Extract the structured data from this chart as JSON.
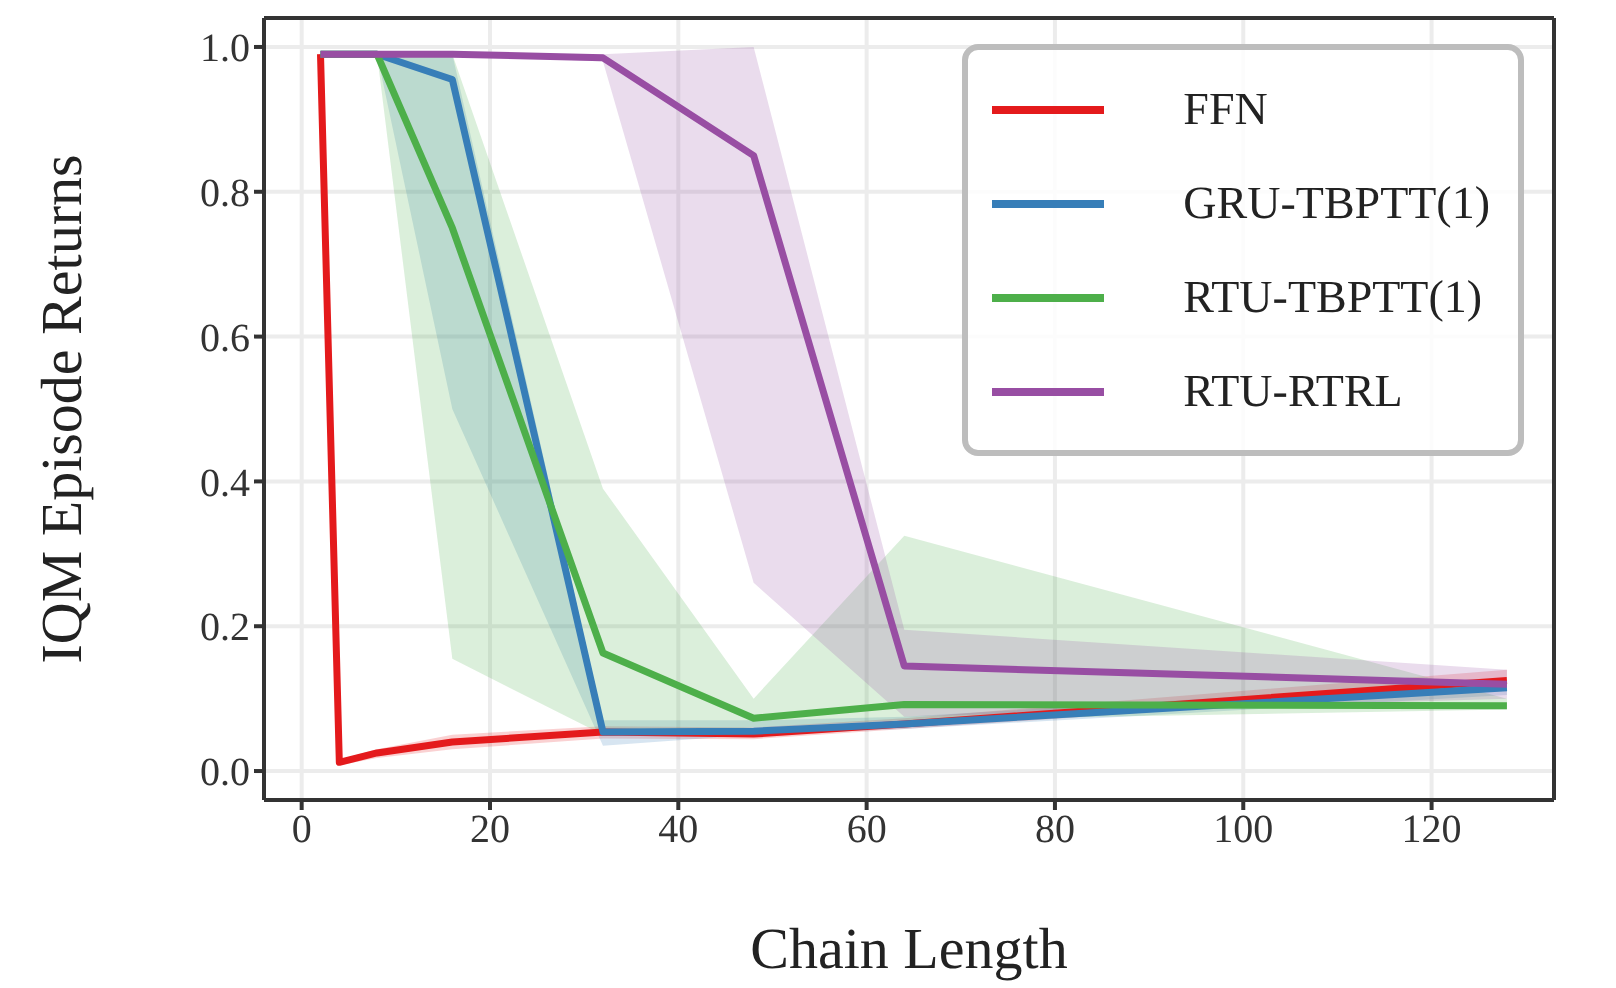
{
  "chart_data": {
    "type": "line",
    "xlabel": "Chain Length",
    "ylabel": "IQM Episode Returns",
    "x": [
      2,
      4,
      8,
      16,
      32,
      48,
      64,
      128
    ],
    "xlim": [
      -4,
      133
    ],
    "xticks": [
      0,
      20,
      40,
      60,
      80,
      100,
      120
    ],
    "ylim": [
      -0.04,
      1.04
    ],
    "yticks": [
      {
        "value": 0,
        "label": "0.0"
      },
      {
        "value": 0.2,
        "label": "0.2"
      },
      {
        "value": 0.4,
        "label": "0.4"
      },
      {
        "value": 0.6,
        "label": "0.6"
      },
      {
        "value": 0.8,
        "label": "0.8"
      },
      {
        "value": 1,
        "label": "1.0"
      }
    ],
    "grid": true,
    "legend": "top right",
    "marker": "none",
    "line_style": "solid",
    "series": [
      {
        "name": "FFN",
        "color": "#e41a1c",
        "values": [
          0.99,
          0.012,
          0.025,
          0.04,
          0.054,
          0.051,
          0.065,
          0.125
        ],
        "lower": [
          0.98,
          0.008,
          0.018,
          0.03,
          0.045,
          0.044,
          0.058,
          0.115
        ],
        "upper": [
          0.995,
          0.016,
          0.03,
          0.05,
          0.062,
          0.06,
          0.073,
          0.14
        ]
      },
      {
        "name": "GRU-TBPTT(1)",
        "color": "#377eb8",
        "values": [
          0.99,
          0.99,
          0.99,
          0.955,
          0.054,
          0.055,
          0.065,
          0.115
        ],
        "lower": [
          0.99,
          0.99,
          0.99,
          0.5,
          0.035,
          0.05,
          0.058,
          0.105
        ],
        "upper": [
          0.99,
          0.99,
          0.99,
          0.99,
          0.07,
          0.07,
          0.075,
          0.125
        ]
      },
      {
        "name": "RTU-TBPTT(1)",
        "color": "#4daf4a",
        "values": [
          0.99,
          0.99,
          0.99,
          0.75,
          0.163,
          0.073,
          0.092,
          0.09
        ],
        "lower": [
          0.99,
          0.99,
          0.99,
          0.155,
          0.05,
          0.06,
          0.07,
          0.085
        ],
        "upper": [
          0.99,
          0.99,
          0.99,
          0.99,
          0.39,
          0.1,
          0.325,
          0.1
        ]
      },
      {
        "name": "RTU-RTRL",
        "color": "#984ea3",
        "values": [
          0.99,
          0.99,
          0.99,
          0.99,
          0.985,
          0.85,
          0.145,
          0.12
        ],
        "lower": [
          0.99,
          0.99,
          0.99,
          0.99,
          0.98,
          0.26,
          0.075,
          0.1
        ],
        "upper": [
          0.99,
          0.99,
          0.99,
          0.99,
          0.99,
          1.0,
          0.195,
          0.14
        ]
      }
    ]
  }
}
